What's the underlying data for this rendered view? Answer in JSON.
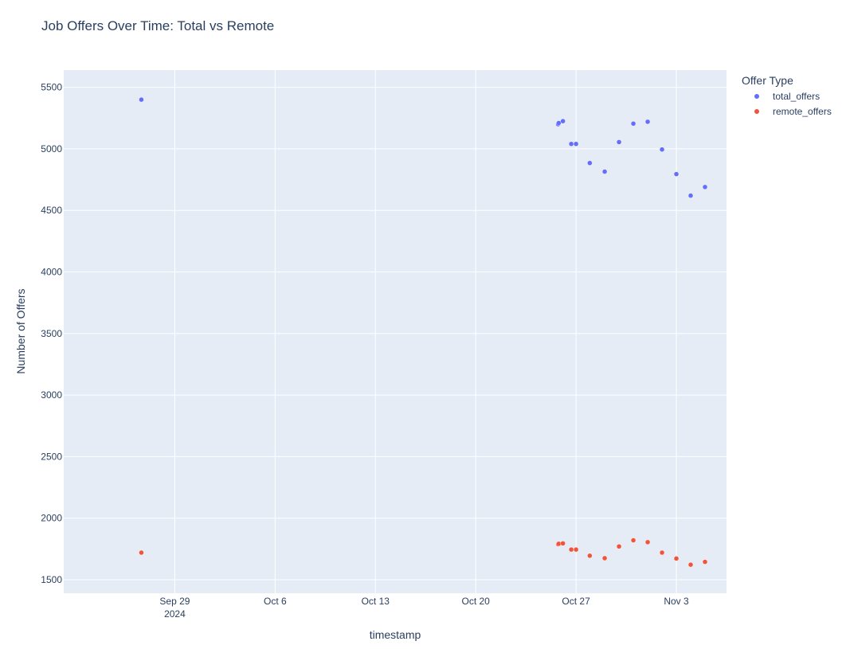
{
  "chart_data": {
    "type": "scatter",
    "title": "Job Offers Over Time: Total vs Remote",
    "xlabel": "timestamp",
    "ylabel": "Number of Offers",
    "xlim": [
      "2024-09-21T06:00",
      "2024-11-06T12:00"
    ],
    "ylim": [
      1390,
      5640
    ],
    "grid": true,
    "x_ticks": [
      {
        "date": "2024-09-29",
        "label": "Sep 29",
        "sublabel": "2024"
      },
      {
        "date": "2024-10-06",
        "label": "Oct 6"
      },
      {
        "date": "2024-10-13",
        "label": "Oct 13"
      },
      {
        "date": "2024-10-20",
        "label": "Oct 20"
      },
      {
        "date": "2024-10-27",
        "label": "Oct 27"
      },
      {
        "date": "2024-11-03",
        "label": "Nov 3"
      }
    ],
    "y_ticks": [
      1500,
      2000,
      2500,
      3000,
      3500,
      4000,
      4500,
      5000,
      5500
    ],
    "legend": {
      "title": "Offer Type",
      "placement": "top-right"
    },
    "series": [
      {
        "name": "total_offers",
        "color": "#636efa",
        "points": [
          {
            "x": "2024-09-26T16:00",
            "y": 5400
          },
          {
            "x": "2024-10-25T18:00",
            "y": 5200
          },
          {
            "x": "2024-10-25T19:00",
            "y": 5210
          },
          {
            "x": "2024-10-26T02:00",
            "y": 5225
          },
          {
            "x": "2024-10-26T16:00",
            "y": 5040
          },
          {
            "x": "2024-10-27T00:00",
            "y": 5040
          },
          {
            "x": "2024-10-27T23:00",
            "y": 4885
          },
          {
            "x": "2024-10-29T00:00",
            "y": 4815
          },
          {
            "x": "2024-10-30T00:00",
            "y": 5055
          },
          {
            "x": "2024-10-31T00:00",
            "y": 5205
          },
          {
            "x": "2024-11-01T00:00",
            "y": 5220
          },
          {
            "x": "2024-11-02T00:00",
            "y": 4995
          },
          {
            "x": "2024-11-03T00:00",
            "y": 4795
          },
          {
            "x": "2024-11-04T00:00",
            "y": 4620
          },
          {
            "x": "2024-11-05T00:00",
            "y": 4690
          }
        ]
      },
      {
        "name": "remote_offers",
        "color": "#ef553b",
        "points": [
          {
            "x": "2024-09-26T16:00",
            "y": 1720
          },
          {
            "x": "2024-10-25T18:00",
            "y": 1788
          },
          {
            "x": "2024-10-25T19:00",
            "y": 1792
          },
          {
            "x": "2024-10-26T02:00",
            "y": 1795
          },
          {
            "x": "2024-10-26T16:00",
            "y": 1745
          },
          {
            "x": "2024-10-27T00:00",
            "y": 1745
          },
          {
            "x": "2024-10-27T23:00",
            "y": 1695
          },
          {
            "x": "2024-10-29T00:00",
            "y": 1675
          },
          {
            "x": "2024-10-30T00:00",
            "y": 1770
          },
          {
            "x": "2024-10-31T00:00",
            "y": 1820
          },
          {
            "x": "2024-11-01T00:00",
            "y": 1805
          },
          {
            "x": "2024-11-02T00:00",
            "y": 1720
          },
          {
            "x": "2024-11-03T00:00",
            "y": 1672
          },
          {
            "x": "2024-11-04T00:00",
            "y": 1622
          },
          {
            "x": "2024-11-05T00:00",
            "y": 1645
          }
        ]
      }
    ]
  }
}
